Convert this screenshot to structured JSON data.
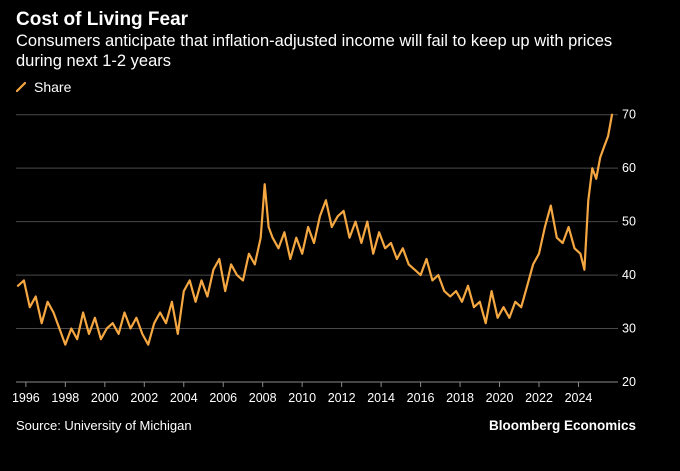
{
  "header": {
    "title": "Cost of Living Fear",
    "subtitle": "Consumers anticipate that inflation-adjusted income will fail to keep up with prices during next 1-2 years"
  },
  "legend": {
    "label": "Share",
    "color": "#F5A742"
  },
  "footer": {
    "source": "Source: University of Michigan",
    "brand": "Bloomberg Economics"
  },
  "chart_data": {
    "type": "line",
    "title": "Cost of Living Fear",
    "xlabel": "",
    "ylabel": "",
    "xlim": [
      1995.5,
      2025.8
    ],
    "ylim": [
      20,
      72
    ],
    "yticks": [
      20,
      30,
      40,
      50,
      60,
      70
    ],
    "xticks": [
      1996,
      1998,
      2000,
      2002,
      2004,
      2006,
      2008,
      2010,
      2012,
      2014,
      2016,
      2018,
      2020,
      2022,
      2024
    ],
    "grid": "horizontal",
    "series": [
      {
        "name": "Share",
        "color": "#F5A742",
        "x": [
          1995.6,
          1995.9,
          1996.2,
          1996.5,
          1996.8,
          1997.1,
          1997.4,
          1997.7,
          1998.0,
          1998.3,
          1998.6,
          1998.9,
          1999.2,
          1999.5,
          1999.8,
          2000.1,
          2000.4,
          2000.7,
          2001.0,
          2001.3,
          2001.6,
          2001.9,
          2002.2,
          2002.5,
          2002.8,
          2003.1,
          2003.4,
          2003.7,
          2004.0,
          2004.3,
          2004.6,
          2004.9,
          2005.2,
          2005.5,
          2005.8,
          2006.1,
          2006.4,
          2006.7,
          2007.0,
          2007.3,
          2007.6,
          2007.9,
          2008.1,
          2008.3,
          2008.5,
          2008.8,
          2009.1,
          2009.4,
          2009.7,
          2010.0,
          2010.3,
          2010.6,
          2010.9,
          2011.2,
          2011.5,
          2011.8,
          2012.1,
          2012.4,
          2012.7,
          2013.0,
          2013.3,
          2013.6,
          2013.9,
          2014.2,
          2014.5,
          2014.8,
          2015.1,
          2015.4,
          2015.7,
          2016.0,
          2016.3,
          2016.6,
          2016.9,
          2017.2,
          2017.5,
          2017.8,
          2018.1,
          2018.4,
          2018.7,
          2019.0,
          2019.3,
          2019.6,
          2019.9,
          2020.2,
          2020.5,
          2020.8,
          2021.1,
          2021.4,
          2021.7,
          2022.0,
          2022.3,
          2022.6,
          2022.9,
          2023.2,
          2023.5,
          2023.8,
          2024.1,
          2024.3,
          2024.5,
          2024.7,
          2024.9,
          2025.1,
          2025.3,
          2025.5,
          2025.7
        ],
        "values": [
          38,
          39,
          34,
          36,
          31,
          35,
          33,
          30,
          27,
          30,
          28,
          33,
          29,
          32,
          28,
          30,
          31,
          29,
          33,
          30,
          32,
          29,
          27,
          31,
          33,
          31,
          35,
          29,
          37,
          39,
          35,
          39,
          36,
          41,
          43,
          37,
          42,
          40,
          39,
          44,
          42,
          47,
          57,
          49,
          47,
          45,
          48,
          43,
          47,
          44,
          49,
          46,
          51,
          54,
          49,
          51,
          52,
          47,
          50,
          46,
          50,
          44,
          48,
          45,
          46,
          43,
          45,
          42,
          41,
          40,
          43,
          39,
          40,
          37,
          36,
          37,
          35,
          38,
          34,
          35,
          31,
          37,
          32,
          34,
          32,
          35,
          34,
          38,
          42,
          44,
          49,
          53,
          47,
          46,
          49,
          45,
          44,
          41,
          54,
          60,
          58,
          62,
          64,
          66,
          70
        ]
      }
    ]
  }
}
